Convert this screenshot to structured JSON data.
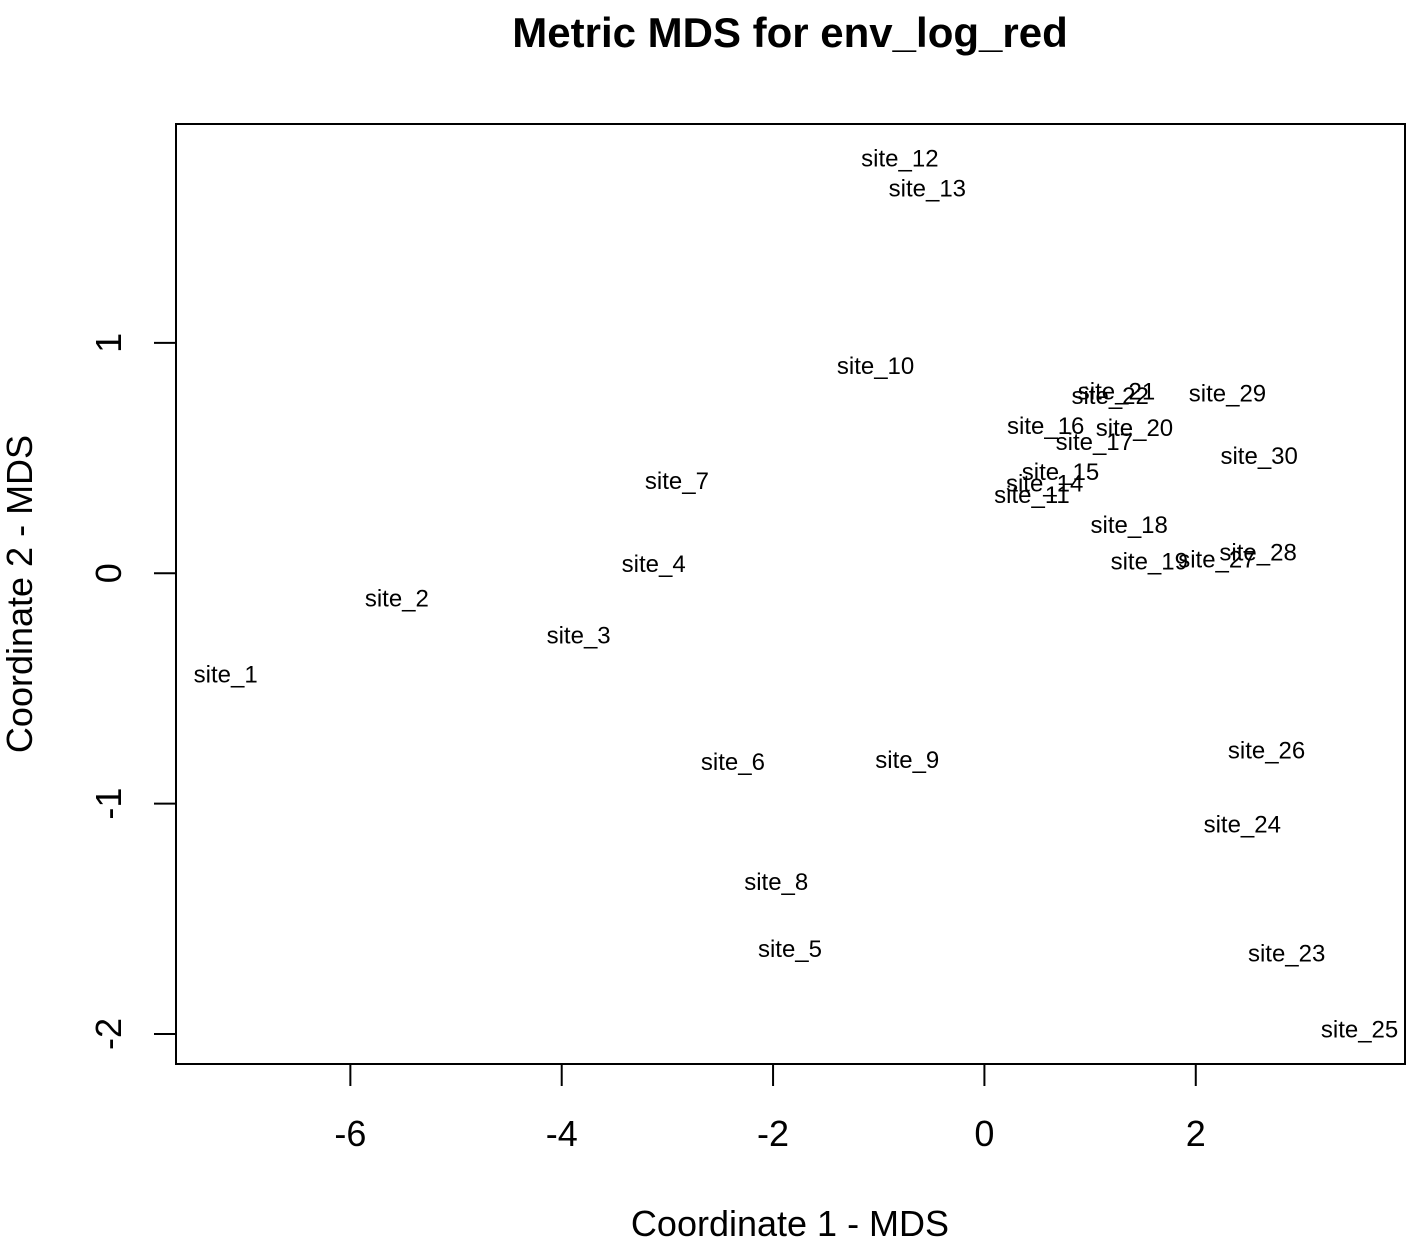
{
  "chart_data": {
    "type": "scatter",
    "title": "Metric MDS for env_log_red",
    "xlabel": "Coordinate 1 - MDS",
    "ylabel": "Coordinate 2 - MDS",
    "xlim": [
      -7.65,
      3.98
    ],
    "ylim": [
      -2.13,
      1.95
    ],
    "xticks": [
      -6,
      -4,
      -2,
      0,
      2
    ],
    "yticks": [
      -2,
      -1,
      0,
      1
    ],
    "xtick_labels": [
      "-6",
      "-4",
      "-2",
      "0",
      "2"
    ],
    "ytick_labels": [
      "-2",
      "-1",
      "0",
      "1"
    ],
    "grid": false,
    "points": [
      {
        "label": "site_1",
        "x": -7.18,
        "y": -0.44
      },
      {
        "label": "site_2",
        "x": -5.56,
        "y": -0.11
      },
      {
        "label": "site_3",
        "x": -3.84,
        "y": -0.27
      },
      {
        "label": "site_4",
        "x": -3.13,
        "y": 0.04
      },
      {
        "label": "site_5",
        "x": -1.84,
        "y": -1.63
      },
      {
        "label": "site_6",
        "x": -2.38,
        "y": -0.82
      },
      {
        "label": "site_7",
        "x": -2.91,
        "y": 0.4
      },
      {
        "label": "site_8",
        "x": -1.97,
        "y": -1.34
      },
      {
        "label": "site_9",
        "x": -0.73,
        "y": -0.81
      },
      {
        "label": "site_10",
        "x": -1.03,
        "y": 0.9
      },
      {
        "label": "site_11",
        "x": 0.45,
        "y": 0.34
      },
      {
        "label": "site_12",
        "x": -0.8,
        "y": 1.8
      },
      {
        "label": "site_13",
        "x": -0.54,
        "y": 1.67
      },
      {
        "label": "site_14",
        "x": 0.57,
        "y": 0.39
      },
      {
        "label": "site_15",
        "x": 0.72,
        "y": 0.44
      },
      {
        "label": "site_16",
        "x": 0.58,
        "y": 0.64
      },
      {
        "label": "site_17",
        "x": 1.04,
        "y": 0.57
      },
      {
        "label": "site_18",
        "x": 1.37,
        "y": 0.21
      },
      {
        "label": "site_19",
        "x": 1.56,
        "y": 0.05
      },
      {
        "label": "site_20",
        "x": 1.42,
        "y": 0.63
      },
      {
        "label": "site_21",
        "x": 1.25,
        "y": 0.79
      },
      {
        "label": "site_22",
        "x": 1.19,
        "y": 0.77
      },
      {
        "label": "site_23",
        "x": 2.86,
        "y": -1.65
      },
      {
        "label": "site_24",
        "x": 2.44,
        "y": -1.09
      },
      {
        "label": "site_25",
        "x": 3.55,
        "y": -1.98
      },
      {
        "label": "site_26",
        "x": 2.67,
        "y": -0.77
      },
      {
        "label": "site_27",
        "x": 2.2,
        "y": 0.06
      },
      {
        "label": "site_28",
        "x": 2.59,
        "y": 0.09
      },
      {
        "label": "site_29",
        "x": 2.3,
        "y": 0.78
      },
      {
        "label": "site_30",
        "x": 2.6,
        "y": 0.51
      }
    ]
  }
}
